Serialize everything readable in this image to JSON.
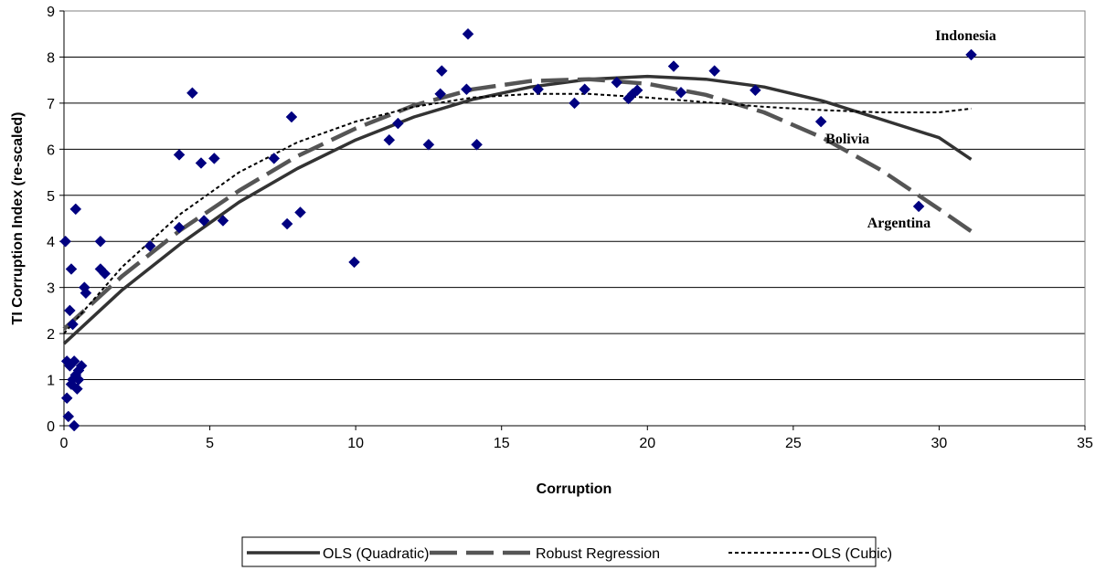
{
  "chart_data": {
    "type": "scatter",
    "xlabel": "Corruption",
    "ylabel": "TI Corruption Index (re-scaled)",
    "xlim": [
      0,
      35
    ],
    "ylim": [
      0,
      9
    ],
    "xticks": [
      0,
      5,
      10,
      15,
      20,
      25,
      30,
      35
    ],
    "yticks": [
      0,
      1,
      2,
      3,
      4,
      5,
      6,
      7,
      8,
      9
    ],
    "grid": "horizontal",
    "legend_position": "bottom",
    "marker_color": "#000080",
    "points": [
      {
        "x": 0.05,
        "y": 4.0
      },
      {
        "x": 0.1,
        "y": 1.4
      },
      {
        "x": 0.1,
        "y": 0.6
      },
      {
        "x": 0.15,
        "y": 0.2
      },
      {
        "x": 0.2,
        "y": 2.5
      },
      {
        "x": 0.2,
        "y": 1.3
      },
      {
        "x": 0.25,
        "y": 3.4
      },
      {
        "x": 0.25,
        "y": 0.9
      },
      {
        "x": 0.3,
        "y": 2.2
      },
      {
        "x": 0.3,
        "y": 1.0
      },
      {
        "x": 0.35,
        "y": 0.0
      },
      {
        "x": 0.35,
        "y": 1.4
      },
      {
        "x": 0.4,
        "y": 4.7
      },
      {
        "x": 0.4,
        "y": 1.1
      },
      {
        "x": 0.45,
        "y": 0.8
      },
      {
        "x": 0.5,
        "y": 1.2
      },
      {
        "x": 0.5,
        "y": 1.0
      },
      {
        "x": 0.6,
        "y": 1.3
      },
      {
        "x": 0.7,
        "y": 3.0
      },
      {
        "x": 0.75,
        "y": 2.88
      },
      {
        "x": 1.25,
        "y": 4.0
      },
      {
        "x": 1.25,
        "y": 3.4
      },
      {
        "x": 1.4,
        "y": 3.3
      },
      {
        "x": 2.95,
        "y": 3.9
      },
      {
        "x": 3.95,
        "y": 4.3
      },
      {
        "x": 3.95,
        "y": 5.88
      },
      {
        "x": 4.4,
        "y": 7.22
      },
      {
        "x": 4.7,
        "y": 5.7
      },
      {
        "x": 4.8,
        "y": 4.45
      },
      {
        "x": 5.15,
        "y": 5.8
      },
      {
        "x": 5.45,
        "y": 4.45
      },
      {
        "x": 7.2,
        "y": 5.8
      },
      {
        "x": 7.65,
        "y": 4.38
      },
      {
        "x": 7.8,
        "y": 6.7
      },
      {
        "x": 8.1,
        "y": 4.63
      },
      {
        "x": 9.95,
        "y": 3.55
      },
      {
        "x": 11.15,
        "y": 6.2
      },
      {
        "x": 11.45,
        "y": 6.56
      },
      {
        "x": 12.5,
        "y": 6.1
      },
      {
        "x": 12.9,
        "y": 7.2
      },
      {
        "x": 12.95,
        "y": 7.7
      },
      {
        "x": 13.8,
        "y": 7.3
      },
      {
        "x": 13.85,
        "y": 8.5
      },
      {
        "x": 14.15,
        "y": 6.1
      },
      {
        "x": 16.25,
        "y": 7.3
      },
      {
        "x": 17.5,
        "y": 7.0
      },
      {
        "x": 17.85,
        "y": 7.3
      },
      {
        "x": 18.95,
        "y": 7.45
      },
      {
        "x": 19.35,
        "y": 7.1
      },
      {
        "x": 19.5,
        "y": 7.2
      },
      {
        "x": 19.65,
        "y": 7.28
      },
      {
        "x": 20.9,
        "y": 7.8
      },
      {
        "x": 21.15,
        "y": 7.23
      },
      {
        "x": 22.3,
        "y": 7.7
      },
      {
        "x": 23.7,
        "y": 7.28
      },
      {
        "x": 25.95,
        "y": 6.6
      },
      {
        "x": 29.3,
        "y": 4.76
      },
      {
        "x": 31.1,
        "y": 8.05
      }
    ],
    "series": [
      {
        "name": "OLS (Quadratic)",
        "style": "solid",
        "x": [
          0,
          2,
          4,
          6,
          8,
          10,
          12,
          14,
          16,
          18,
          20,
          22,
          24,
          26,
          28,
          30,
          31.1
        ],
        "y": [
          1.78,
          2.95,
          3.95,
          4.85,
          5.58,
          6.2,
          6.7,
          7.08,
          7.35,
          7.52,
          7.58,
          7.52,
          7.35,
          7.05,
          6.65,
          6.25,
          5.78
        ]
      },
      {
        "name": "Robust Regression",
        "style": "long-dash",
        "x": [
          0,
          2,
          4,
          6,
          8,
          10,
          12,
          14,
          16,
          18,
          20,
          22,
          24,
          26,
          28,
          30,
          31.1
        ],
        "y": [
          2.1,
          3.25,
          4.25,
          5.1,
          5.85,
          6.45,
          6.95,
          7.3,
          7.48,
          7.52,
          7.42,
          7.18,
          6.8,
          6.25,
          5.55,
          4.7,
          4.22
        ]
      },
      {
        "name": "OLS (Cubic)",
        "style": "dotted",
        "x": [
          0,
          2,
          4,
          6,
          8,
          10,
          12,
          14,
          16,
          18,
          20,
          22,
          24,
          26,
          28,
          30,
          31.1
        ],
        "y": [
          2.0,
          3.45,
          4.6,
          5.5,
          6.15,
          6.6,
          6.92,
          7.12,
          7.2,
          7.2,
          7.12,
          7.02,
          6.92,
          6.85,
          6.8,
          6.8,
          6.88
        ]
      }
    ],
    "annotations": [
      {
        "text": "Indonesia",
        "x": 31.1,
        "y": 8.05
      },
      {
        "text": "Bolivia",
        "x": 25.95,
        "y": 6.6
      },
      {
        "text": "Argentina",
        "x": 29.3,
        "y": 4.76
      }
    ]
  }
}
